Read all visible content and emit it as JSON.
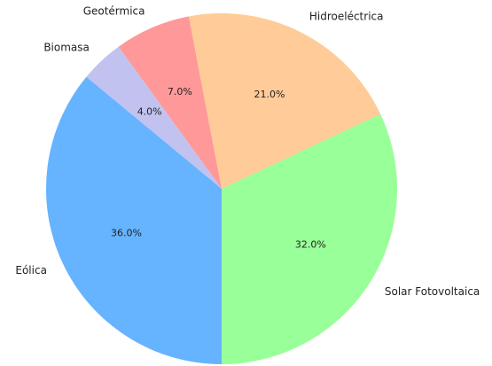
{
  "chart_data": {
    "type": "pie",
    "categories": [
      "Solar Fotovoltaica",
      "Hidroeléctrica",
      "Geotérmica",
      "Biomasa",
      "Eólica"
    ],
    "values": [
      32,
      21,
      7,
      4,
      36
    ],
    "value_labels": [
      "32.0%",
      "21.0%",
      "7.0%",
      "4.0%",
      "36.0%"
    ],
    "colors": [
      "#99ff99",
      "#ffcc99",
      "#ff9999",
      "#c2c2f0",
      "#66b3ff"
    ],
    "startangle": -90
  }
}
